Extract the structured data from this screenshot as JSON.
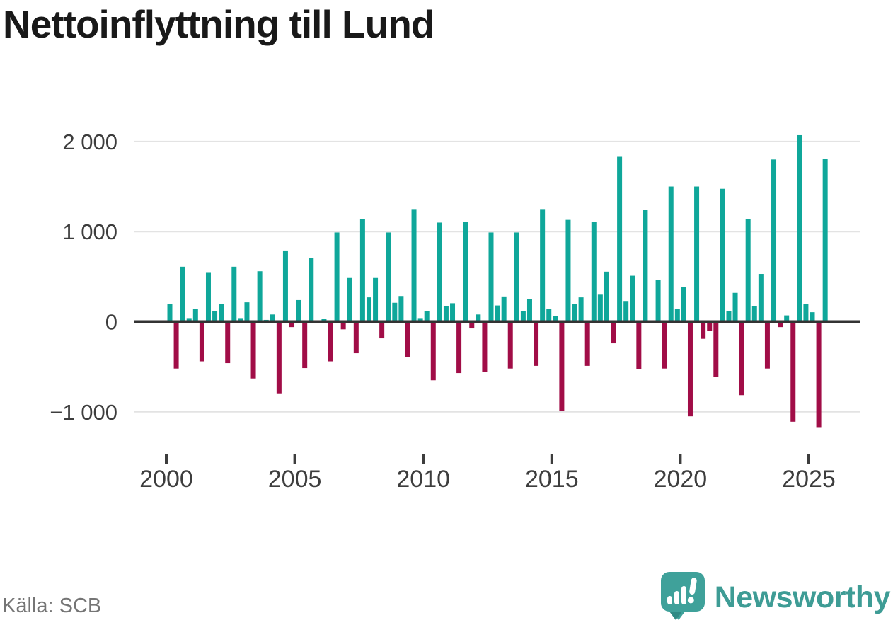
{
  "title": "Nettoinflyttning till Lund",
  "source_label": "Källa: SCB",
  "brand": {
    "name": "Newsworthy",
    "logo_icon": "speech-bubble-bar-chart-exclamation",
    "color": "#3E9C95"
  },
  "colors": {
    "positive_bar": "#0FA79A",
    "negative_bar": "#A10D47",
    "gridline": "#e3e3e3",
    "zero_line": "#333333",
    "axis_text": "#3d3d3d",
    "title_text": "#191919",
    "source_text": "#757575"
  },
  "chart_data": {
    "type": "bar",
    "title": "Nettoinflyttning till Lund",
    "unit": "persons (net migration per quarter)",
    "frequency": "quarterly",
    "x_start": "2000-Q1",
    "x_end": "2025-Q3",
    "x_tick_labels": [
      "2000",
      "2005",
      "2010",
      "2015",
      "2020",
      "2025"
    ],
    "y_tick_labels": [
      "2 000",
      "1 000",
      "0",
      "−1 000"
    ],
    "y_tick_values": [
      2000,
      1000,
      0,
      -1000
    ],
    "ylim": [
      -1250,
      2150
    ],
    "grid": "horizontal",
    "legend": "none",
    "values": [
      200,
      -520,
      610,
      40,
      140,
      -440,
      550,
      120,
      200,
      -460,
      610,
      40,
      215,
      -630,
      560,
      20,
      80,
      -795,
      790,
      -60,
      240,
      -515,
      710,
      0,
      35,
      -440,
      990,
      -85,
      485,
      -350,
      1140,
      270,
      485,
      -185,
      990,
      210,
      285,
      -395,
      1250,
      40,
      120,
      -650,
      1100,
      170,
      205,
      -570,
      1110,
      -75,
      80,
      -560,
      990,
      180,
      280,
      -520,
      990,
      120,
      250,
      -490,
      1250,
      140,
      60,
      -990,
      1130,
      195,
      270,
      -490,
      1110,
      300,
      555,
      -240,
      1830,
      230,
      510,
      -530,
      1240,
      0,
      460,
      -520,
      1500,
      140,
      385,
      -1050,
      1500,
      -190,
      -105,
      -610,
      1475,
      120,
      320,
      -815,
      1140,
      170,
      530,
      -520,
      1800,
      -60,
      70,
      -1110,
      2070,
      200,
      105,
      -1170,
      1810
    ]
  }
}
